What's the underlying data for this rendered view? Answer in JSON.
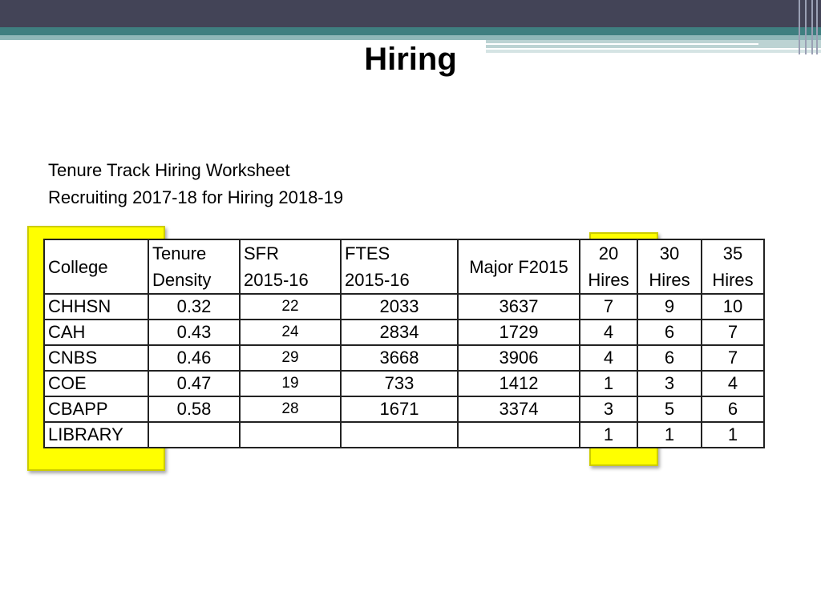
{
  "slide": {
    "title": "Hiring",
    "subtitle_line1": "Tenure Track Hiring Worksheet",
    "subtitle_line2": "Recruiting 2017-18 for Hiring 2018-19"
  },
  "table": {
    "headers": {
      "college": "College",
      "tenure_l1": "Tenure",
      "tenure_l2": "Density",
      "sfr_l1": "SFR",
      "sfr_l2": "2015-16",
      "ftes_l1": "FTES",
      "ftes_l2": "2015-16",
      "major": "Major F2015",
      "h20_l1": "20",
      "h20_l2": "Hires",
      "h30_l1": "30",
      "h30_l2": "Hires",
      "h35_l1": "35",
      "h35_l2": "Hires"
    },
    "rows": [
      {
        "college": "CHHSN",
        "tenure": "0.32",
        "sfr": "22",
        "ftes": "2033",
        "major": "3637",
        "h20": "7",
        "h30": "9",
        "h35": "10"
      },
      {
        "college": "CAH",
        "tenure": "0.43",
        "sfr": "24",
        "ftes": "2834",
        "major": "1729",
        "h20": "4",
        "h30": "6",
        "h35": "7"
      },
      {
        "college": "CNBS",
        "tenure": "0.46",
        "sfr": "29",
        "ftes": "3668",
        "major": "3906",
        "h20": "4",
        "h30": "6",
        "h35": "7"
      },
      {
        "college": "COE",
        "tenure": "0.47",
        "sfr": "19",
        "ftes": "733",
        "major": "1412",
        "h20": "1",
        "h30": "3",
        "h35": "4"
      },
      {
        "college": "CBAPP",
        "tenure": "0.58",
        "sfr": "28",
        "ftes": "1671",
        "major": "3374",
        "h20": "3",
        "h30": "5",
        "h35": "6"
      },
      {
        "college": "LIBRARY",
        "tenure": "",
        "sfr": "",
        "ftes": "",
        "major": "",
        "h20": "1",
        "h30": "1",
        "h35": "1"
      }
    ]
  },
  "colors": {
    "header_bar": "#434457",
    "accent_teal": "#3f7f80",
    "highlight": "#ffff00"
  }
}
